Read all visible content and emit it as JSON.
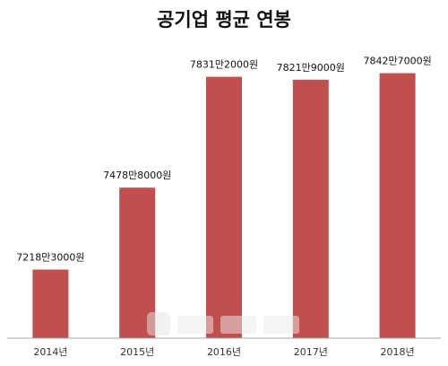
{
  "chart_data": {
    "type": "bar",
    "title": "공기업 평균 연봉",
    "categories": [
      "2014년",
      "2015년",
      "2016년",
      "2017년",
      "2018년"
    ],
    "values": [
      72183000,
      74788000,
      78312000,
      78219000,
      78427000
    ],
    "data_labels": [
      "7218만3000원",
      "7478만8000원",
      "7831만2000원",
      "7821만9000원",
      "7842만7000원"
    ],
    "ylim": [
      70000000,
      79500000
    ],
    "grid": false,
    "legend": "none",
    "bar_color": "#c0504d",
    "axis_color": "#a6a6a6"
  }
}
